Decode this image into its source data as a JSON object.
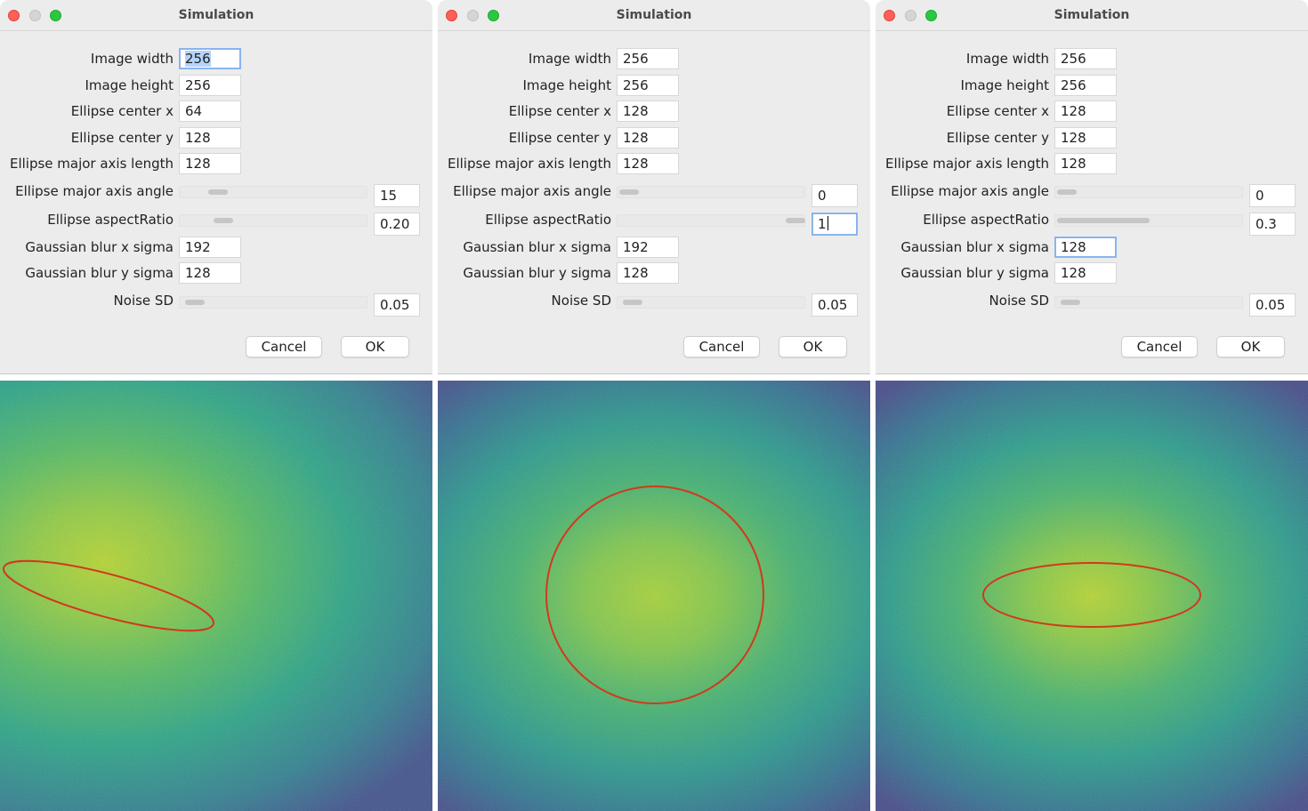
{
  "dialogs": [
    {
      "title": "Simulation",
      "fields": {
        "image_width": {
          "label": "Image width",
          "value": "256"
        },
        "image_height": {
          "label": "Image height",
          "value": "256"
        },
        "center_x": {
          "label": "Ellipse center x",
          "value": "64"
        },
        "center_y": {
          "label": "Ellipse center y",
          "value": "128"
        },
        "major_axis_length": {
          "label": "Ellipse major axis length",
          "value": "128"
        },
        "blur_x": {
          "label": "Gaussian blur x sigma",
          "value": "192"
        },
        "blur_y": {
          "label": "Gaussian blur y sigma",
          "value": "128"
        }
      },
      "sliders": {
        "angle": {
          "label": "Ellipse major axis angle",
          "value": "15"
        },
        "aspect": {
          "label": "Ellipse aspectRatio",
          "value": "0.20"
        },
        "noise": {
          "label": "Noise SD",
          "value": "0.05"
        }
      },
      "buttons": {
        "cancel": "Cancel",
        "ok": "OK"
      }
    },
    {
      "title": "Simulation",
      "fields": {
        "image_width": {
          "label": "Image width",
          "value": "256"
        },
        "image_height": {
          "label": "Image height",
          "value": "256"
        },
        "center_x": {
          "label": "Ellipse center x",
          "value": "128"
        },
        "center_y": {
          "label": "Ellipse center y",
          "value": "128"
        },
        "major_axis_length": {
          "label": "Ellipse major axis length",
          "value": "128"
        },
        "blur_x": {
          "label": "Gaussian blur x sigma",
          "value": "192"
        },
        "blur_y": {
          "label": "Gaussian blur y sigma",
          "value": "128"
        }
      },
      "sliders": {
        "angle": {
          "label": "Ellipse major axis angle",
          "value": "0"
        },
        "aspect": {
          "label": "Ellipse aspectRatio",
          "value": "1"
        },
        "noise": {
          "label": "Noise SD",
          "value": "0.05"
        }
      },
      "buttons": {
        "cancel": "Cancel",
        "ok": "OK"
      }
    },
    {
      "title": "Simulation",
      "fields": {
        "image_width": {
          "label": "Image width",
          "value": "256"
        },
        "image_height": {
          "label": "Image height",
          "value": "256"
        },
        "center_x": {
          "label": "Ellipse center x",
          "value": "128"
        },
        "center_y": {
          "label": "Ellipse center y",
          "value": "128"
        },
        "major_axis_length": {
          "label": "Ellipse major axis length",
          "value": "128"
        },
        "blur_x": {
          "label": "Gaussian blur x sigma",
          "value": "128"
        },
        "blur_y": {
          "label": "Gaussian blur y sigma",
          "value": "128"
        }
      },
      "sliders": {
        "angle": {
          "label": "Ellipse major axis angle",
          "value": "0"
        },
        "aspect": {
          "label": "Ellipse aspectRatio",
          "value": "0.3"
        },
        "noise": {
          "label": "Noise SD",
          "value": "0.05"
        }
      },
      "buttons": {
        "cancel": "Cancel",
        "ok": "OK"
      }
    }
  ],
  "colors": {
    "window_bg": "#ececec",
    "close": "#fe5f57",
    "zoom": "#2ac840",
    "focus_ring": "#8ab4ef",
    "ellipse_outline": "#d03a1c",
    "viridis_dark": "#3b4d8a",
    "viridis_mid": "#21918c",
    "viridis_bright": "#b5d62b"
  },
  "icons": [
    "close-window-icon",
    "minimize-window-icon",
    "zoom-window-icon"
  ]
}
